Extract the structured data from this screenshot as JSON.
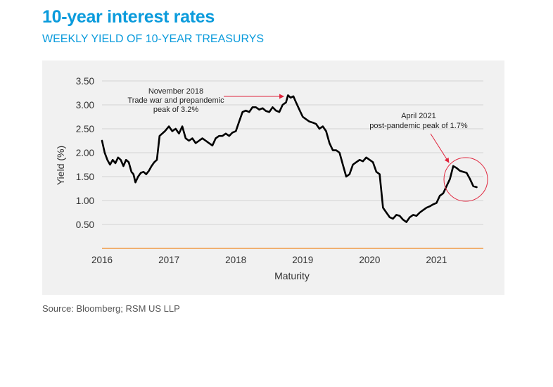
{
  "header": {
    "title": "10-year interest rates",
    "subtitle": "WEEKLY YIELD OF 10-YEAR TREASURYS"
  },
  "source": "Source: Bloomberg; RSM US LLP",
  "colors": {
    "title": "#0a9bdc",
    "line": "#000000",
    "annotation": "#e0243c",
    "baseline": "#f08a24",
    "grid": "#d3d3d3",
    "panel": "#f1f1f1"
  },
  "chart_data": {
    "type": "line",
    "title": "10-year interest rates",
    "subtitle": "WEEKLY YIELD OF 10-YEAR TREASURYS",
    "xlabel": "Maturity",
    "ylabel": "Yield (%)",
    "xlim": [
      2016.0,
      2021.7
    ],
    "ylim": [
      0,
      3.5
    ],
    "y_ticks": [
      "0.50",
      "1.00",
      "1.50",
      "2.00",
      "2.50",
      "3.00",
      "3.50"
    ],
    "y_tick_values": [
      0.5,
      1.0,
      1.5,
      2.0,
      2.5,
      3.0,
      3.5
    ],
    "x_ticks": [
      "2016",
      "2017",
      "2018",
      "2019",
      "2020",
      "2021"
    ],
    "x_tick_values": [
      2016,
      2017,
      2018,
      2019,
      2020,
      2021
    ],
    "grid": true,
    "series": [
      {
        "x": [
          2016.0,
          2016.04,
          2016.08,
          2016.12,
          2016.16,
          2016.2,
          2016.24,
          2016.28,
          2016.32,
          2016.36,
          2016.4,
          2016.44,
          2016.47,
          2016.5,
          2016.54,
          2016.58,
          2016.62,
          2016.66,
          2016.7,
          2016.74,
          2016.78,
          2016.82,
          2016.86,
          2016.9,
          2016.94,
          2017.0,
          2017.05,
          2017.1,
          2017.15,
          2017.2,
          2017.25,
          2017.3,
          2017.35,
          2017.4,
          2017.45,
          2017.5,
          2017.55,
          2017.6,
          2017.65,
          2017.7,
          2017.75,
          2017.8,
          2017.85,
          2017.9,
          2017.95,
          2018.0,
          2018.05,
          2018.1,
          2018.15,
          2018.2,
          2018.25,
          2018.3,
          2018.35,
          2018.4,
          2018.45,
          2018.5,
          2018.55,
          2018.6,
          2018.65,
          2018.7,
          2018.75,
          2018.78,
          2018.82,
          2018.86,
          2018.9,
          2018.95,
          2019.0,
          2019.05,
          2019.1,
          2019.15,
          2019.2,
          2019.25,
          2019.3,
          2019.35,
          2019.4,
          2019.45,
          2019.5,
          2019.55,
          2019.6,
          2019.65,
          2019.7,
          2019.75,
          2019.8,
          2019.85,
          2019.9,
          2019.95,
          2020.0,
          2020.05,
          2020.1,
          2020.15,
          2020.2,
          2020.25,
          2020.3,
          2020.35,
          2020.4,
          2020.45,
          2020.5,
          2020.55,
          2020.6,
          2020.65,
          2020.7,
          2020.75,
          2020.8,
          2020.85,
          2020.9,
          2020.95,
          2021.0,
          2021.05,
          2021.1,
          2021.15,
          2021.2,
          2021.25,
          2021.3,
          2021.35,
          2021.4,
          2021.45,
          2021.5,
          2021.55,
          2021.6
        ],
        "y": [
          2.25,
          2.0,
          1.85,
          1.75,
          1.85,
          1.78,
          1.9,
          1.85,
          1.72,
          1.85,
          1.8,
          1.6,
          1.55,
          1.38,
          1.5,
          1.58,
          1.6,
          1.55,
          1.62,
          1.72,
          1.8,
          1.85,
          2.35,
          2.4,
          2.45,
          2.55,
          2.45,
          2.5,
          2.4,
          2.55,
          2.3,
          2.25,
          2.3,
          2.2,
          2.25,
          2.3,
          2.25,
          2.2,
          2.15,
          2.3,
          2.35,
          2.35,
          2.4,
          2.35,
          2.42,
          2.45,
          2.65,
          2.85,
          2.88,
          2.85,
          2.95,
          2.95,
          2.9,
          2.93,
          2.87,
          2.85,
          2.95,
          2.88,
          2.85,
          3.0,
          3.05,
          3.2,
          3.15,
          3.18,
          3.05,
          2.9,
          2.75,
          2.7,
          2.65,
          2.63,
          2.6,
          2.5,
          2.55,
          2.45,
          2.2,
          2.05,
          2.05,
          2.0,
          1.75,
          1.5,
          1.55,
          1.75,
          1.8,
          1.85,
          1.82,
          1.9,
          1.85,
          1.8,
          1.6,
          1.55,
          0.85,
          0.75,
          0.65,
          0.62,
          0.7,
          0.68,
          0.6,
          0.55,
          0.65,
          0.7,
          0.68,
          0.75,
          0.8,
          0.85,
          0.88,
          0.92,
          0.95,
          1.1,
          1.15,
          1.3,
          1.45,
          1.72,
          1.68,
          1.62,
          1.6,
          1.58,
          1.45,
          1.3,
          1.28
        ]
      }
    ],
    "annotations": [
      {
        "x": 2018.78,
        "y": 3.2,
        "lines": [
          "November 2018",
          "Trade war and prepandemic",
          "peak of 3.2%"
        ]
      },
      {
        "x": 2021.25,
        "y": 1.72,
        "lines": [
          "April 2021",
          "post-pandemic peak of 1.7%"
        ]
      }
    ]
  }
}
